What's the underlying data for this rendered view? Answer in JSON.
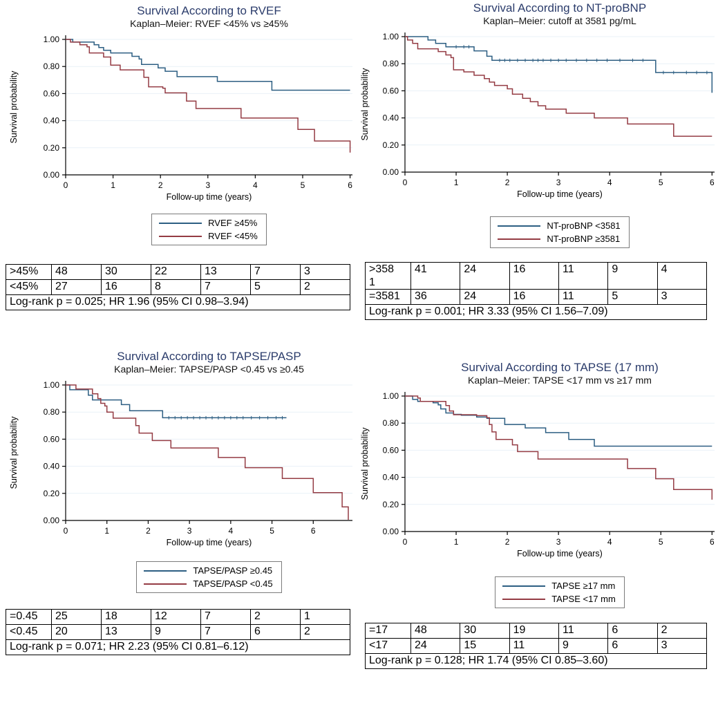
{
  "colors": {
    "blue": "#2C5E82",
    "red": "#943B43",
    "title": "#2B3C6B",
    "grid": "#E9F1F7",
    "axis": "#000000",
    "legend_border": "#7B7B7B",
    "table_border": "#000000"
  },
  "chart_data": [
    {
      "type": "line",
      "variant": "kaplan-meier-step",
      "title": "Survival According to RVEF",
      "subtitle": "Kaplan–Meier: RVEF <45% vs ≥45%",
      "xlabel": "Follow-up time (years)",
      "ylabel": "Survival probability",
      "xlim": [
        0,
        6.05
      ],
      "ylim": [
        0,
        1
      ],
      "xticks": [
        0,
        1,
        2,
        3,
        4,
        5,
        6
      ],
      "ytick_labels": [
        "1.00",
        "0.80",
        "0.60",
        "0.40",
        "0.20",
        "0.00"
      ],
      "grid": "horizontal-light",
      "legend_position": "below-center",
      "series": [
        {
          "name": "RVEF ≥45%",
          "color_key": "blue",
          "points": [
            [
              0,
              1
            ],
            [
              0.15,
              0.98
            ],
            [
              0.6,
              0.96
            ],
            [
              0.7,
              0.94
            ],
            [
              0.8,
              0.92
            ],
            [
              0.95,
              0.9
            ],
            [
              1.4,
              0.875
            ],
            [
              1.55,
              0.855
            ],
            [
              1.6,
              0.815
            ],
            [
              1.95,
              0.79
            ],
            [
              2.1,
              0.765
            ],
            [
              2.35,
              0.725
            ],
            [
              3.2,
              0.69
            ],
            [
              4.35,
              0.625
            ],
            [
              6,
              0.625
            ]
          ],
          "censors": []
        },
        {
          "name": "RVEF <45%",
          "color_key": "red",
          "points": [
            [
              0,
              1
            ],
            [
              0.1,
              0.98
            ],
            [
              0.3,
              0.96
            ],
            [
              0.45,
              0.945
            ],
            [
              0.5,
              0.9
            ],
            [
              0.8,
              0.87
            ],
            [
              0.95,
              0.81
            ],
            [
              1.15,
              0.775
            ],
            [
              1.65,
              0.72
            ],
            [
              1.75,
              0.65
            ],
            [
              2.05,
              0.64
            ],
            [
              2.1,
              0.605
            ],
            [
              2.55,
              0.545
            ],
            [
              2.75,
              0.49
            ],
            [
              3.7,
              0.42
            ],
            [
              4.9,
              0.335
            ],
            [
              5.25,
              0.25
            ],
            [
              6,
              0.165
            ]
          ],
          "censors": []
        }
      ],
      "risk_table": {
        "rows": [
          {
            "label": ">45%",
            "counts": [
              48,
              30,
              22,
              13,
              7,
              3
            ]
          },
          {
            "label": "<45%",
            "counts": [
              27,
              16,
              8,
              7,
              5,
              2
            ]
          }
        ],
        "footer": "Log-rank p = 0.025; HR 1.96 (95% CI 0.98–3.94)"
      }
    },
    {
      "type": "line",
      "variant": "kaplan-meier-step",
      "title": "Survival According to NT-proBNP",
      "subtitle": "Kaplan–Meier: cutoff at 3581 pg/mL",
      "xlabel": "Follow-up time (years)",
      "ylabel": "Survival probability",
      "xlim": [
        0,
        6.05
      ],
      "ylim": [
        0,
        1
      ],
      "xticks": [
        0,
        1,
        2,
        3,
        4,
        5,
        6
      ],
      "ytick_labels": [
        "1.00",
        "0.80",
        "0.60",
        "0.40",
        "0.20",
        "0.00"
      ],
      "grid": "horizontal-light",
      "legend_position": "below-center",
      "series": [
        {
          "name": "NT-proBNP <3581",
          "color_key": "blue",
          "points": [
            [
              0,
              1
            ],
            [
              0.45,
              0.975
            ],
            [
              0.6,
              0.95
            ],
            [
              0.8,
              0.925
            ],
            [
              1.35,
              0.895
            ],
            [
              1.6,
              0.855
            ],
            [
              1.7,
              0.825
            ],
            [
              4.9,
              0.735
            ],
            [
              6,
              0.585
            ]
          ],
          "censors": [
            [
              1.0,
              0.925
            ],
            [
              1.15,
              0.925
            ],
            [
              1.25,
              0.925
            ],
            [
              1.85,
              0.825
            ],
            [
              1.95,
              0.825
            ],
            [
              2.05,
              0.825
            ],
            [
              2.2,
              0.825
            ],
            [
              2.35,
              0.825
            ],
            [
              2.5,
              0.825
            ],
            [
              2.6,
              0.825
            ],
            [
              2.7,
              0.825
            ],
            [
              2.85,
              0.825
            ],
            [
              3.0,
              0.825
            ],
            [
              3.15,
              0.825
            ],
            [
              3.35,
              0.825
            ],
            [
              3.55,
              0.825
            ],
            [
              3.75,
              0.825
            ],
            [
              3.95,
              0.825
            ],
            [
              4.2,
              0.825
            ],
            [
              4.45,
              0.825
            ],
            [
              4.65,
              0.825
            ],
            [
              5.05,
              0.735
            ],
            [
              5.25,
              0.735
            ],
            [
              5.5,
              0.735
            ],
            [
              5.7,
              0.735
            ],
            [
              5.9,
              0.735
            ]
          ]
        },
        {
          "name": "NT-proBNP ≥3581",
          "color_key": "red",
          "points": [
            [
              0,
              1
            ],
            [
              0.05,
              0.975
            ],
            [
              0.15,
              0.95
            ],
            [
              0.25,
              0.91
            ],
            [
              0.65,
              0.89
            ],
            [
              0.8,
              0.865
            ],
            [
              0.9,
              0.845
            ],
            [
              0.95,
              0.755
            ],
            [
              1.15,
              0.74
            ],
            [
              1.35,
              0.715
            ],
            [
              1.55,
              0.69
            ],
            [
              1.65,
              0.665
            ],
            [
              1.75,
              0.64
            ],
            [
              2.0,
              0.615
            ],
            [
              2.1,
              0.575
            ],
            [
              2.3,
              0.545
            ],
            [
              2.45,
              0.52
            ],
            [
              2.6,
              0.49
            ],
            [
              2.75,
              0.465
            ],
            [
              3.15,
              0.435
            ],
            [
              3.7,
              0.4
            ],
            [
              4.35,
              0.355
            ],
            [
              5.25,
              0.265
            ],
            [
              6,
              0.265
            ]
          ],
          "censors": []
        }
      ],
      "risk_table": {
        "rows": [
          {
            "label": ">358\n1",
            "counts": [
              41,
              24,
              16,
              11,
              9,
              4
            ]
          },
          {
            "label": "=3581",
            "counts": [
              36,
              24,
              16,
              11,
              5,
              3
            ]
          }
        ],
        "footer": "Log-rank p = 0.001; HR 3.33 (95% CI 1.56–7.09)"
      }
    },
    {
      "type": "line",
      "variant": "kaplan-meier-step",
      "title": "Survival According to TAPSE/PASP",
      "subtitle": "Kaplan–Meier: TAPSE/PASP <0.45 vs ≥0.45",
      "xlabel": "Follow-up time (years)",
      "ylabel": "Survival probability",
      "xlim": [
        0,
        6.95
      ],
      "ylim": [
        0,
        1
      ],
      "xticks": [
        0,
        1,
        2,
        3,
        4,
        5,
        6
      ],
      "ytick_labels": [
        "1.00",
        "0.80",
        "0.60",
        "0.40",
        "0.20",
        "0.00"
      ],
      "grid": "horizontal-light",
      "legend_position": "below-center",
      "series": [
        {
          "name": "TAPSE/PASP ≥0.45",
          "color_key": "blue",
          "points": [
            [
              0,
              1
            ],
            [
              0.1,
              0.965
            ],
            [
              0.55,
              0.925
            ],
            [
              0.65,
              0.89
            ],
            [
              1.35,
              0.855
            ],
            [
              1.55,
              0.81
            ],
            [
              2.35,
              0.758
            ],
            [
              5.35,
              0.758
            ]
          ],
          "censors": [
            [
              2.5,
              0.758
            ],
            [
              2.65,
              0.758
            ],
            [
              2.8,
              0.758
            ],
            [
              2.95,
              0.758
            ],
            [
              3.1,
              0.758
            ],
            [
              3.25,
              0.758
            ],
            [
              3.4,
              0.758
            ],
            [
              3.55,
              0.758
            ],
            [
              3.7,
              0.758
            ],
            [
              3.85,
              0.758
            ],
            [
              4.0,
              0.758
            ],
            [
              4.15,
              0.758
            ],
            [
              4.3,
              0.758
            ],
            [
              4.5,
              0.758
            ],
            [
              4.7,
              0.758
            ],
            [
              4.9,
              0.758
            ],
            [
              5.1,
              0.758
            ],
            [
              5.25,
              0.758
            ]
          ]
        },
        {
          "name": "TAPSE/PASP <0.45",
          "color_key": "red",
          "points": [
            [
              0,
              1
            ],
            [
              0.25,
              0.97
            ],
            [
              0.65,
              0.935
            ],
            [
              0.78,
              0.9
            ],
            [
              0.85,
              0.865
            ],
            [
              0.95,
              0.845
            ],
            [
              1.0,
              0.8
            ],
            [
              1.15,
              0.755
            ],
            [
              1.7,
              0.7
            ],
            [
              1.78,
              0.645
            ],
            [
              2.1,
              0.59
            ],
            [
              2.55,
              0.535
            ],
            [
              3.7,
              0.465
            ],
            [
              4.35,
              0.39
            ],
            [
              5.25,
              0.31
            ],
            [
              6.0,
              0.205
            ],
            [
              6.7,
              0.1
            ],
            [
              6.85,
              0.005
            ]
          ],
          "censors": []
        }
      ],
      "risk_table": {
        "rows": [
          {
            "label": "=0.45",
            "counts": [
              25,
              18,
              12,
              7,
              2,
              1
            ]
          },
          {
            "label": "<0.45",
            "counts": [
              20,
              13,
              9,
              7,
              6,
              2
            ]
          }
        ],
        "footer": "Log-rank p = 0.071; HR 2.23 (95% CI 0.81–6.12)"
      }
    },
    {
      "type": "line",
      "variant": "kaplan-meier-step",
      "title": "Survival According to TAPSE (17 mm)",
      "subtitle": "Kaplan–Meier: TAPSE <17 mm vs ≥17 mm",
      "xlabel": "Follow-up time (years)",
      "ylabel": "Survival probability",
      "xlim": [
        0,
        6.05
      ],
      "ylim": [
        0,
        1
      ],
      "xticks": [
        0,
        1,
        2,
        3,
        4,
        5,
        6
      ],
      "ytick_labels": [
        "1.00",
        "0.80",
        "0.60",
        "0.40",
        "0.20",
        "0.00"
      ],
      "grid": "horizontal-light",
      "legend_position": "below-center",
      "series": [
        {
          "name": "TAPSE ≥17 mm",
          "color_key": "blue",
          "points": [
            [
              0,
              1
            ],
            [
              0.15,
              0.975
            ],
            [
              0.25,
              0.96
            ],
            [
              0.55,
              0.95
            ],
            [
              0.65,
              0.935
            ],
            [
              0.7,
              0.905
            ],
            [
              0.8,
              0.875
            ],
            [
              0.95,
              0.865
            ],
            [
              1.1,
              0.858
            ],
            [
              1.4,
              0.845
            ],
            [
              1.6,
              0.835
            ],
            [
              1.95,
              0.79
            ],
            [
              2.35,
              0.765
            ],
            [
              2.75,
              0.73
            ],
            [
              3.2,
              0.68
            ],
            [
              3.7,
              0.63
            ],
            [
              6,
              0.63
            ]
          ],
          "censors": []
        },
        {
          "name": "TAPSE <17 mm",
          "color_key": "red",
          "points": [
            [
              0,
              1
            ],
            [
              0.25,
              0.985
            ],
            [
              0.3,
              0.96
            ],
            [
              0.8,
              0.93
            ],
            [
              0.87,
              0.89
            ],
            [
              0.95,
              0.862
            ],
            [
              1.4,
              0.855
            ],
            [
              1.6,
              0.84
            ],
            [
              1.65,
              0.79
            ],
            [
              1.7,
              0.735
            ],
            [
              1.78,
              0.68
            ],
            [
              2.1,
              0.64
            ],
            [
              2.2,
              0.59
            ],
            [
              2.6,
              0.535
            ],
            [
              4.35,
              0.465
            ],
            [
              4.9,
              0.39
            ],
            [
              5.25,
              0.31
            ],
            [
              6,
              0.235
            ]
          ],
          "censors": []
        }
      ],
      "risk_table": {
        "rows": [
          {
            "label": "=17",
            "counts": [
              48,
              30,
              19,
              11,
              6,
              2
            ]
          },
          {
            "label": "<17",
            "counts": [
              24,
              15,
              11,
              9,
              6,
              3
            ]
          }
        ],
        "footer": "Log-rank p = 0.128; HR 1.74 (95% CI 0.85–3.60)"
      }
    }
  ]
}
